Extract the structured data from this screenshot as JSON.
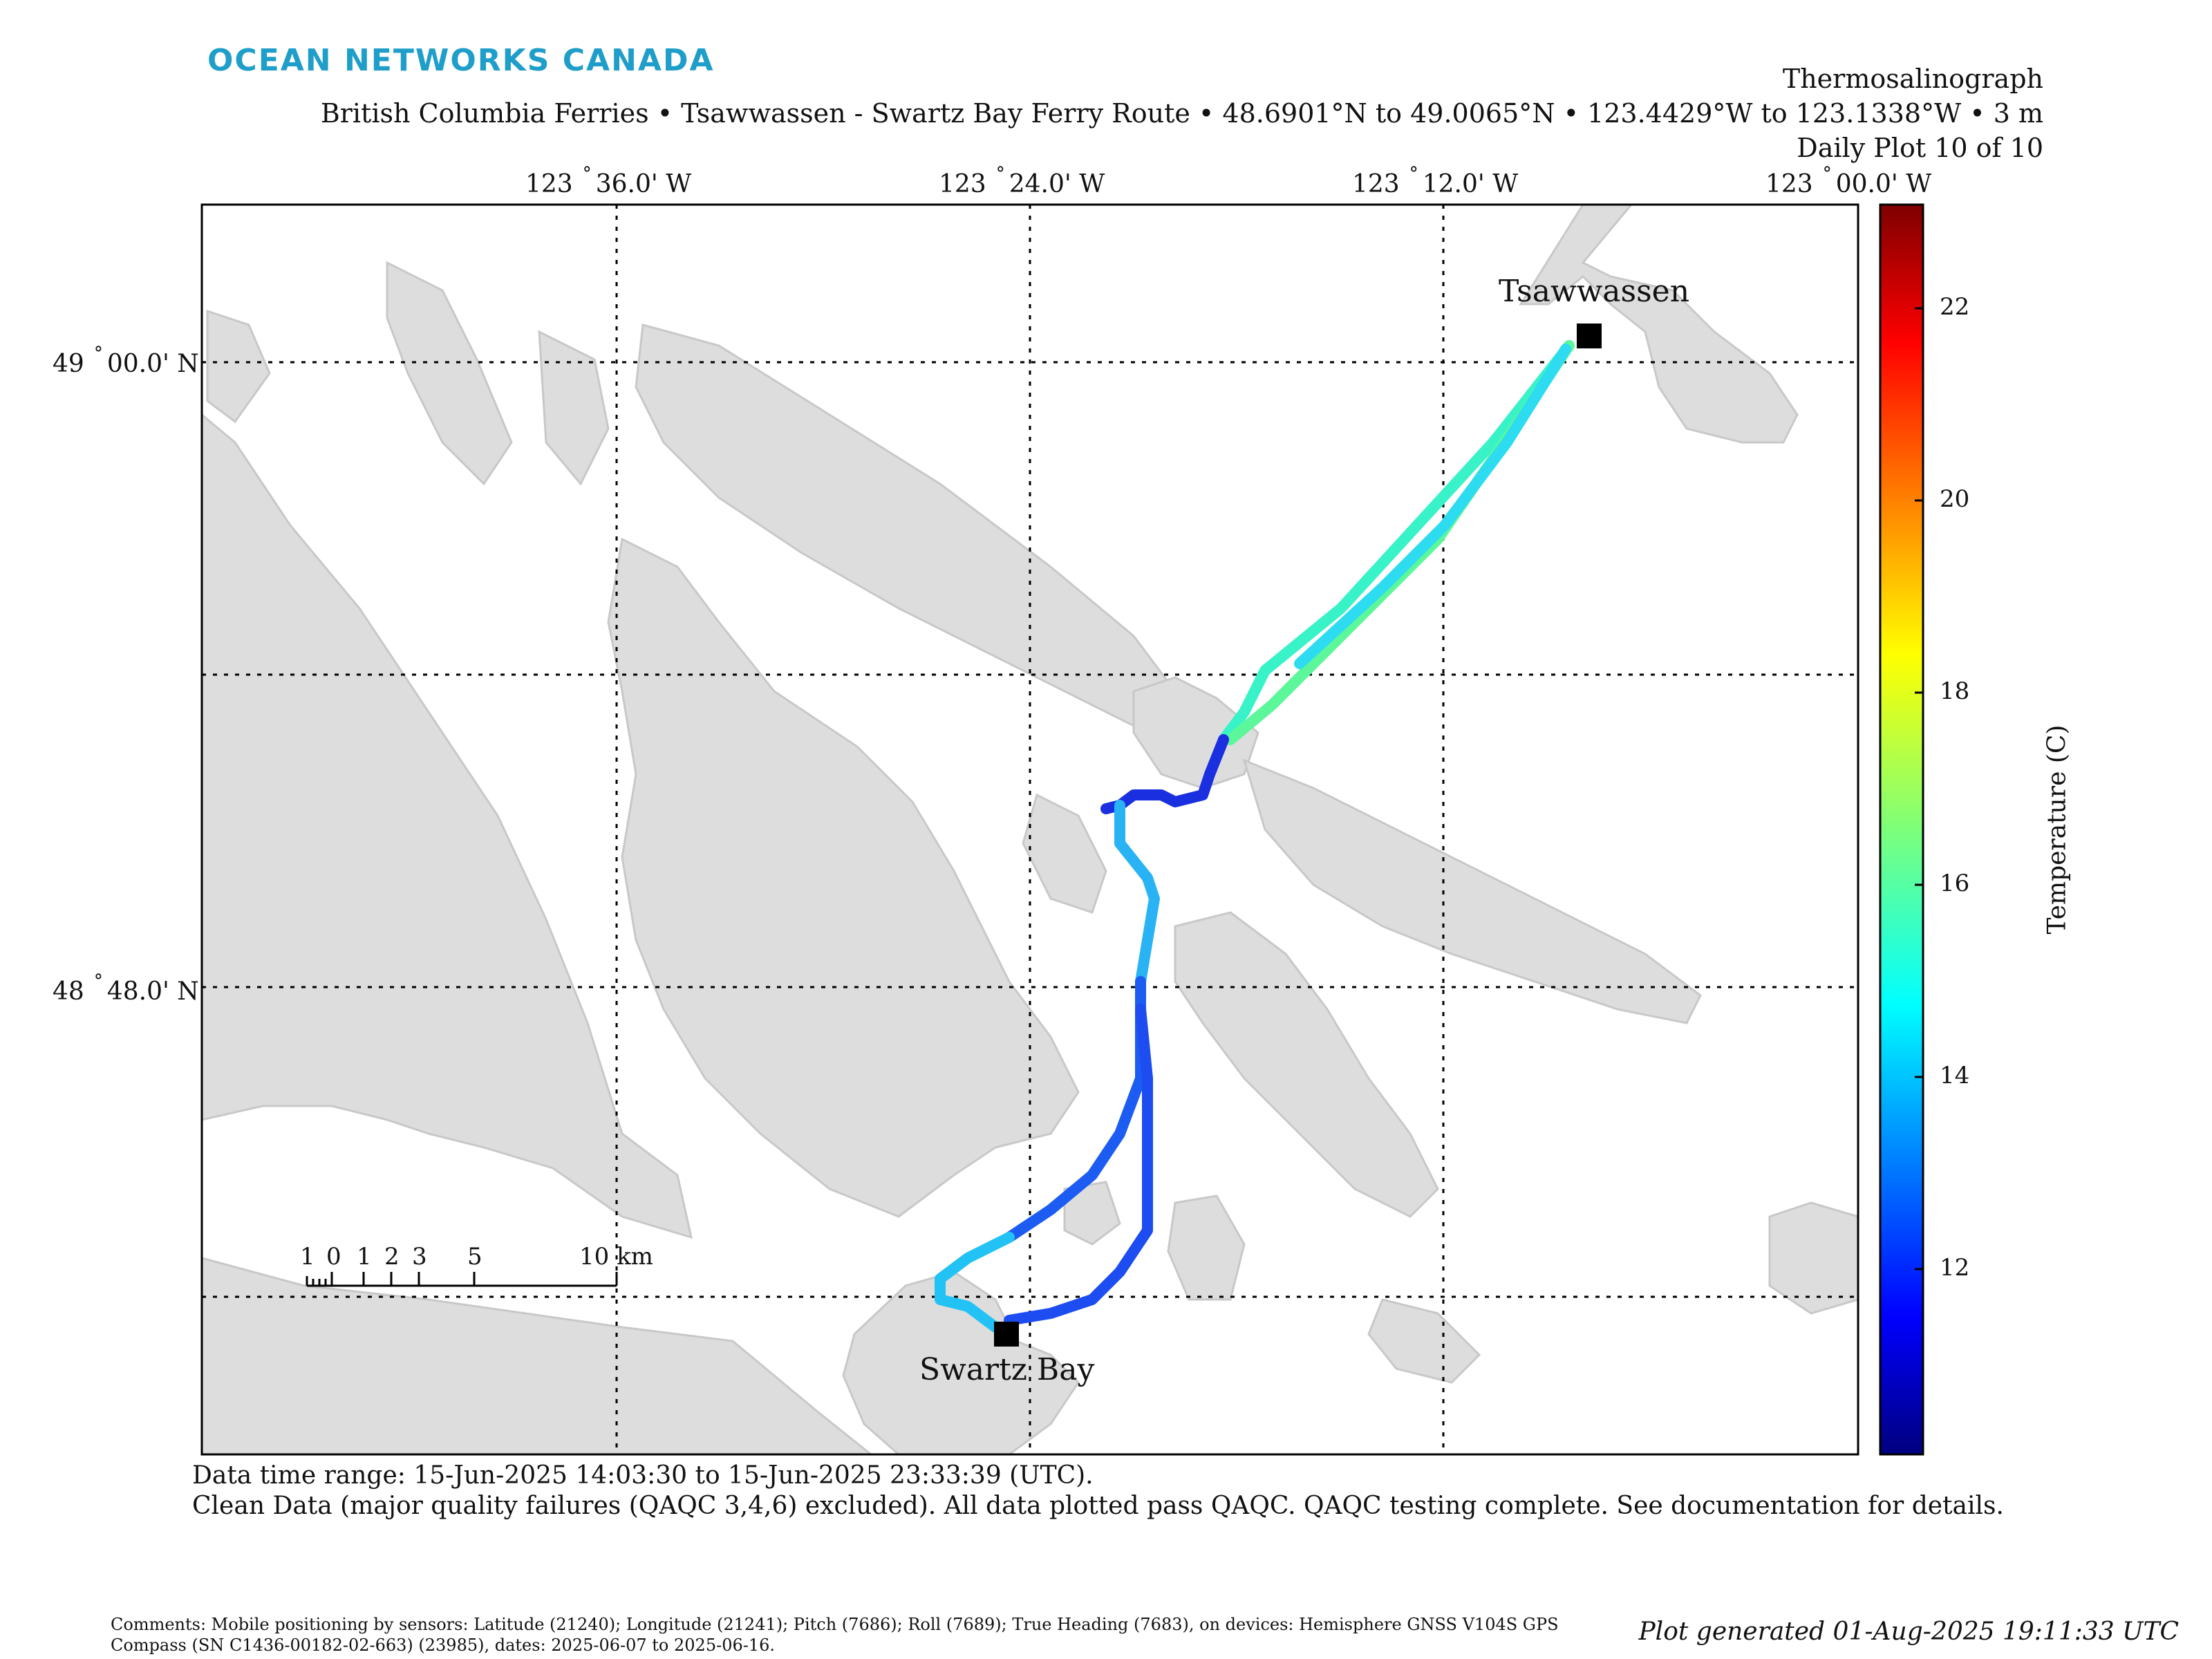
{
  "brand": "OCEAN NETWORKS CANADA",
  "header": {
    "instrument": "Thermosalinograph",
    "route": "British Columbia Ferries • Tsawwassen - Swartz Bay Ferry Route • 48.6901°N to 49.0065°N • 123.4429°W to 123.1338°W • 3 m",
    "plot_index": "Daily Plot 10 of 10"
  },
  "map": {
    "longitude_labels": [
      {
        "deg": "123",
        "min": "36.0' W"
      },
      {
        "deg": "123",
        "min": "24.0' W"
      },
      {
        "deg": "123",
        "min": "12.0' W"
      },
      {
        "deg": "123",
        "min": "00.0' W"
      }
    ],
    "latitude_labels": [
      {
        "deg": "49",
        "min": "00.0' N"
      },
      {
        "deg": "48",
        "min": "48.0' N"
      }
    ],
    "terminals": [
      {
        "name": "Tsawwassen"
      },
      {
        "name": "Swartz Bay"
      }
    ],
    "scale_bar": {
      "labels": [
        "1",
        "0",
        "1",
        "2",
        "3",
        "5",
        "10 km"
      ]
    },
    "colors": {
      "land": "#dddddd",
      "land_edge": "#c8c8c8",
      "water": "#ffffff",
      "grid": "#000000",
      "terminal_marker": "#000000"
    }
  },
  "colorbar": {
    "title": "Temperature (C)",
    "ticks": [
      "22",
      "20",
      "18",
      "16",
      "14",
      "12"
    ],
    "range": [
      10.1,
      23.1
    ],
    "colormap": "jet"
  },
  "footer": {
    "time_range": "Data time range: 15-Jun-2025 14:03:30 to 15-Jun-2025 23:33:39 (UTC).",
    "qaqc": "Clean Data (major quality failures (QAQC 3,4,6) excluded). All data plotted pass QAQC. QAQC testing complete. See documentation for details.",
    "comments_line1": "Comments: Mobile positioning by sensors: Latitude (21240); Longitude (21241); Pitch (7686); Roll (7689); True Heading (7683), on devices: Hemisphere GNSS V104S GPS",
    "comments_line2": "Compass (SN C1436-00182-02-663) (23985), dates: 2025-06-07 to 2025-06-16.",
    "generated": "Plot generated 01-Aug-2025 19:11:33 UTC"
  }
}
